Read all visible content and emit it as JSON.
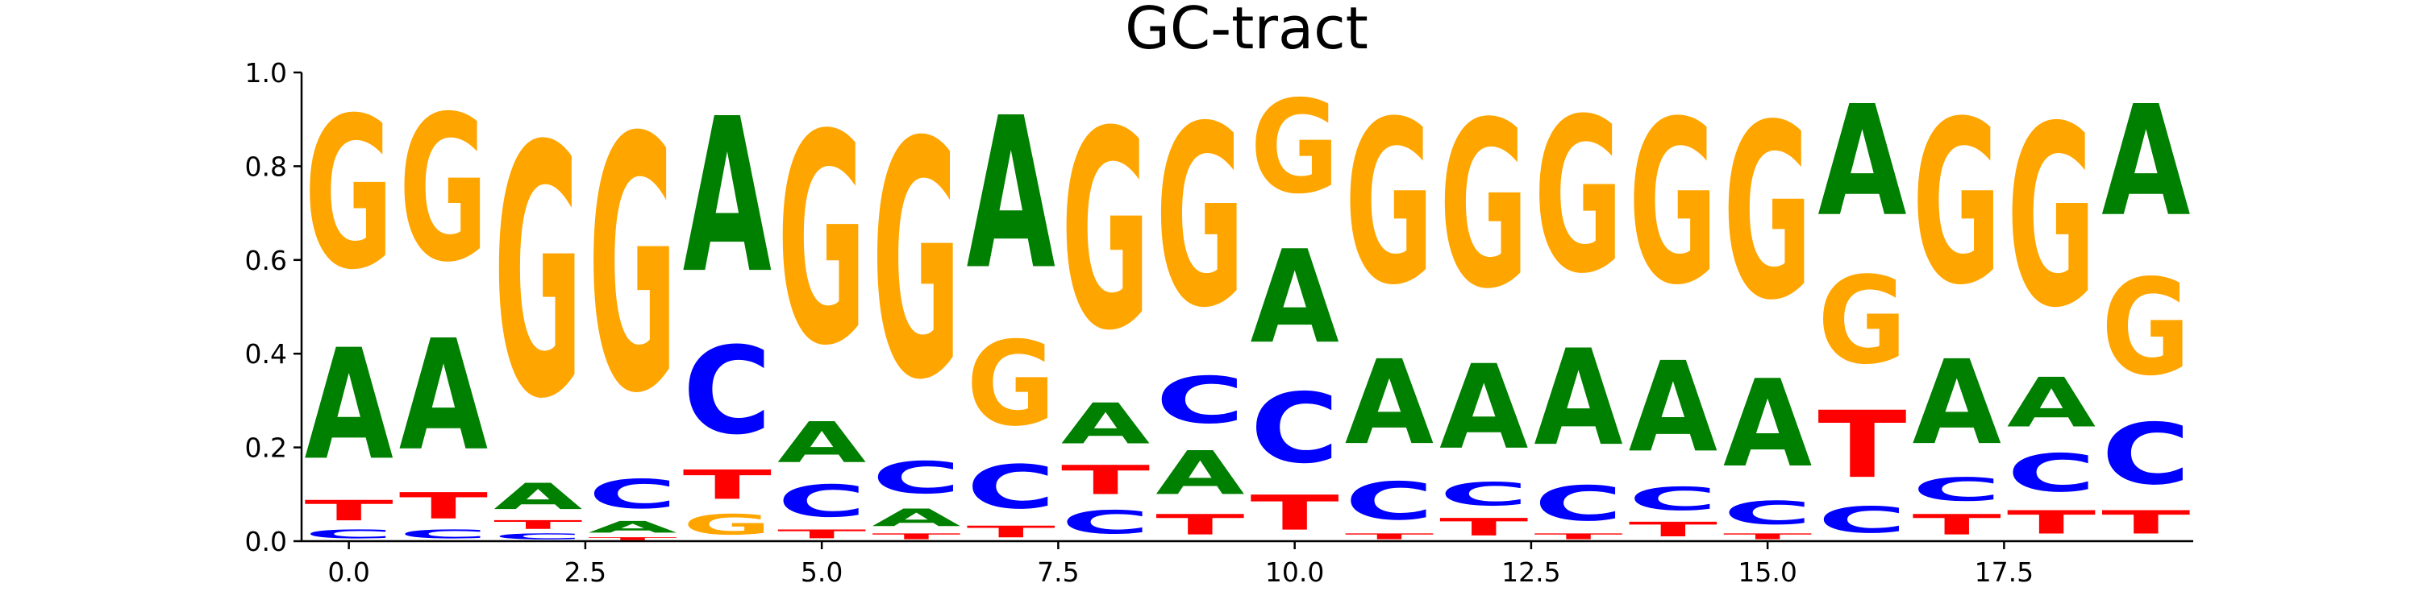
{
  "colors": {
    "A": "#008000",
    "C": "#0000ff",
    "G": "#ffa500",
    "T": "#ff0000"
  },
  "chart_data": {
    "type": "sequence-logo",
    "title": "GC-tract",
    "xlabel": "",
    "ylabel": "",
    "xlim": [
      -0.5,
      19.5
    ],
    "ylim": [
      0,
      1.0
    ],
    "xticks": [
      0.0,
      2.5,
      5.0,
      7.5,
      10.0,
      12.5,
      15.0,
      17.5
    ],
    "xtick_labels": [
      "0.0",
      "2.5",
      "5.0",
      "7.5",
      "10.0",
      "12.5",
      "15.0",
      "17.5"
    ],
    "yticks": [
      0.0,
      0.2,
      0.4,
      0.6,
      0.8,
      1.0
    ],
    "ytick_labels": [
      "0.0",
      "0.2",
      "0.4",
      "0.6",
      "0.8",
      "1.0"
    ],
    "positions": [
      0,
      1,
      2,
      3,
      4,
      5,
      6,
      7,
      8,
      9,
      10,
      11,
      12,
      13,
      14,
      15,
      16,
      17,
      18,
      19
    ],
    "series": [
      {
        "name": "A",
        "values": [
          0.38,
          0.38,
          0.09,
          0.04,
          0.53,
          0.14,
          0.06,
          0.52,
          0.14,
          0.15,
          0.32,
          0.29,
          0.29,
          0.33,
          0.31,
          0.3,
          0.38,
          0.29,
          0.17,
          0.38
        ]
      },
      {
        "name": "C",
        "values": [
          0.03,
          0.03,
          0.02,
          0.1,
          0.3,
          0.11,
          0.11,
          0.15,
          0.08,
          0.16,
          0.24,
          0.13,
          0.08,
          0.12,
          0.08,
          0.08,
          0.09,
          0.08,
          0.13,
          0.21
        ]
      },
      {
        "name": "G",
        "values": [
          0.52,
          0.5,
          0.86,
          0.87,
          0.07,
          0.72,
          0.81,
          0.29,
          0.68,
          0.62,
          0.32,
          0.56,
          0.57,
          0.53,
          0.56,
          0.6,
          0.3,
          0.56,
          0.62,
          0.33
        ]
      },
      {
        "name": "T",
        "values": [
          0.07,
          0.09,
          0.03,
          0.01,
          0.1,
          0.03,
          0.02,
          0.04,
          0.1,
          0.07,
          0.12,
          0.02,
          0.06,
          0.02,
          0.05,
          0.02,
          0.23,
          0.07,
          0.08,
          0.08
        ]
      }
    ]
  }
}
